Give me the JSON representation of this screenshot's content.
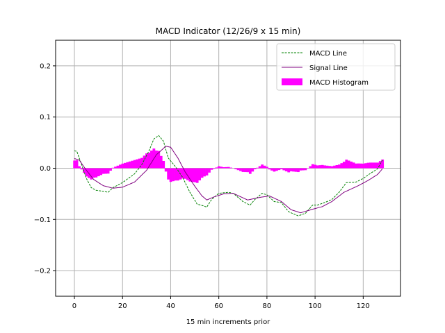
{
  "chart_data": {
    "type": "line",
    "title": "MACD Indicator (12/26/9 x 15 min)",
    "xlabel": "15 min increments prior",
    "ylabel": "",
    "xlim": [
      -7.8,
      135.5
    ],
    "ylim": [
      -0.25,
      0.25
    ],
    "xticks": [
      0,
      20,
      40,
      60,
      80,
      100,
      120
    ],
    "yticks": [
      0.2,
      0.1,
      0.0,
      -0.1,
      -0.2
    ],
    "ytick_labels": [
      "0.2",
      "0.1",
      "0.0",
      "−0.1",
      "−0.2"
    ],
    "grid": true,
    "legend_position": "top-right",
    "colors": {
      "macd": "#008000",
      "signal": "#800080",
      "histogram": "#ff00ff"
    },
    "series": [
      {
        "name": "MACD Line",
        "style": "dashed",
        "x": [
          0,
          1,
          3,
          5,
          7,
          9,
          12,
          14,
          16,
          20,
          25,
          28,
          31,
          33,
          35,
          37,
          39,
          42,
          45,
          48,
          51,
          54,
          55,
          57,
          60,
          64,
          66,
          70,
          73,
          75,
          78,
          80,
          83,
          86,
          89,
          93,
          96,
          99,
          101,
          104,
          107,
          110,
          113,
          117,
          120,
          123,
          126,
          128
        ],
        "y": [
          0.034,
          0.033,
          0.007,
          -0.02,
          -0.038,
          -0.043,
          -0.045,
          -0.047,
          -0.038,
          -0.028,
          -0.011,
          0.007,
          0.034,
          0.057,
          0.064,
          0.053,
          0.02,
          0.003,
          -0.018,
          -0.047,
          -0.07,
          -0.074,
          -0.076,
          -0.061,
          -0.049,
          -0.047,
          -0.049,
          -0.065,
          -0.072,
          -0.061,
          -0.049,
          -0.052,
          -0.065,
          -0.067,
          -0.085,
          -0.093,
          -0.088,
          -0.072,
          -0.072,
          -0.067,
          -0.061,
          -0.047,
          -0.028,
          -0.027,
          -0.02,
          -0.01,
          -0.001,
          0.016
        ]
      },
      {
        "name": "Signal Line",
        "style": "solid",
        "x": [
          0,
          2,
          5,
          8,
          12,
          16,
          20,
          25,
          30,
          34,
          38,
          40,
          43,
          46,
          50,
          53,
          55,
          58,
          62,
          66,
          72,
          77,
          81,
          86,
          90,
          94,
          99,
          103,
          107,
          112,
          118,
          122,
          126,
          128
        ],
        "y": [
          0.019,
          0.016,
          -0.004,
          -0.022,
          -0.034,
          -0.039,
          -0.037,
          -0.027,
          -0.004,
          0.026,
          0.043,
          0.041,
          0.02,
          -0.007,
          -0.035,
          -0.054,
          -0.062,
          -0.056,
          -0.05,
          -0.049,
          -0.062,
          -0.057,
          -0.054,
          -0.065,
          -0.081,
          -0.087,
          -0.08,
          -0.075,
          -0.065,
          -0.047,
          -0.034,
          -0.024,
          -0.012,
          -0.001
        ]
      },
      {
        "name": "MACD Histogram",
        "style": "bar",
        "definition": "MACD Line minus Signal Line",
        "x_range": [
          0,
          128
        ]
      }
    ]
  }
}
